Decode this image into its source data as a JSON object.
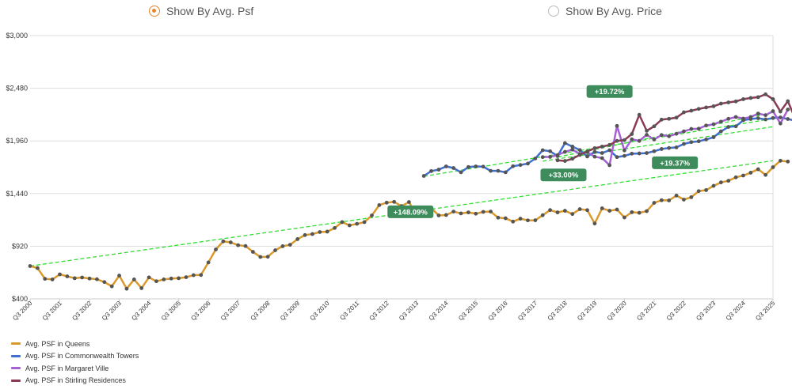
{
  "toggle": {
    "option1": {
      "label": "Show By Avg. Psf",
      "selected": true
    },
    "option2": {
      "label": "Show By Avg. Price",
      "selected": false
    },
    "accent": "#e5862b"
  },
  "chart_data": {
    "type": "line",
    "title": "",
    "xlabel": "",
    "ylabel": "",
    "y_ticks": [
      "$400",
      "$920",
      "$1,440",
      "$1,960",
      "$2,480",
      "$3,000"
    ],
    "ylim": [
      400,
      3000
    ],
    "x_ticks": [
      "Q3 2000",
      "Q3 2001",
      "Q3 2002",
      "Q3 2003",
      "Q3 2004",
      "Q3 2005",
      "Q3 2006",
      "Q3 2007",
      "Q3 2008",
      "Q3 2009",
      "Q3 2010",
      "Q3 2011",
      "Q3 2012",
      "Q3 2013",
      "Q3 2014",
      "Q3 2015",
      "Q3 2016",
      "Q3 2017",
      "Q3 2018",
      "Q3 2019",
      "Q3 2020",
      "Q3 2021",
      "Q3 2022",
      "Q3 2023",
      "Q3 2024",
      "Q3 2025"
    ],
    "xlim": [
      2000.5,
      2025.5
    ],
    "grid": true,
    "legend_position": "bottom-left",
    "series": [
      {
        "name": "Avg. PSF in Queens",
        "color": "#d99a2b",
        "x_start": 2000.5,
        "values": [
          724,
          704,
          598,
          592,
          642,
          622,
          604,
          611,
          601,
          594,
          566,
          524,
          630,
          500,
          592,
          506,
          612,
          574,
          592,
          601,
          604,
          614,
          634,
          636,
          760,
          888,
          968,
          958,
          930,
          922,
          864,
          814,
          816,
          880,
          920,
          934,
          990,
          1030,
          1040,
          1060,
          1064,
          1100,
          1158,
          1126,
          1141,
          1158,
          1224,
          1326,
          1350,
          1358,
          1316,
          1356,
          1230,
          1284,
          1298,
          1224,
          1228,
          1262,
          1244,
          1254,
          1241,
          1259,
          1262,
          1202,
          1196,
          1163,
          1192,
          1175,
          1176,
          1226,
          1277,
          1254,
          1270,
          1238,
          1286,
          1276,
          1144,
          1294,
          1270,
          1282,
          1204,
          1256,
          1250,
          1266,
          1348,
          1374,
          1372,
          1420,
          1380,
          1404,
          1464,
          1474,
          1516,
          1550,
          1566,
          1600,
          1618,
          1646,
          1680,
          1624,
          1700,
          1764,
          1756
        ]
      },
      {
        "name": "Avg. PSF in Commonwealth Towers",
        "color": "#3f6fd1",
        "x_start": 2013.75,
        "values": [
          1614,
          1662,
          1676,
          1708,
          1692,
          1650,
          1702,
          1708,
          1706,
          1664,
          1664,
          1650,
          1710,
          1722,
          1736,
          1786,
          1868,
          1858,
          1810,
          1938,
          1904,
          1870,
          1806,
          1852,
          1840,
          1868,
          1800,
          1812,
          1834,
          1836,
          1840,
          1858,
          1880,
          1890,
          1896,
          1930,
          1948,
          1956,
          1974,
          1996,
          2054,
          2098,
          2104,
          2164,
          2176,
          2184,
          2172,
          2186,
          2192,
          2176,
          2160
        ]
      },
      {
        "name": "Avg. PSF in Margaret Ville",
        "color": "#a860d6",
        "x_start": 2017.75,
        "values": [
          1800,
          1802,
          1820,
          1852,
          1874,
          1830,
          1850,
          1804,
          1790,
          1720,
          2108,
          1866,
          1976,
          1960,
          2020,
          1974,
          2018,
          2006,
          2030,
          2054,
          2078,
          2080,
          2112,
          2124,
          2150,
          2178,
          2196,
          2180,
          2196,
          2230,
          2214,
          2254,
          2132,
          2270
        ]
      },
      {
        "name": "Avg. PSF in Stirling Residences",
        "color": "#8a3a52",
        "x_start": 2018.25,
        "values": [
          1768,
          1762,
          1784,
          1822,
          1856,
          1888,
          1904,
          1920,
          1960,
          1968,
          2028,
          2218,
          2060,
          2104,
          2170,
          2178,
          2190,
          2242,
          2258,
          2276,
          2290,
          2302,
          2328,
          2340,
          2350,
          2372,
          2384,
          2392,
          2420,
          2372,
          2250,
          2352,
          2180
        ]
      }
    ],
    "trendlines": [
      {
        "from": [
          2000.5,
          724
        ],
        "to": [
          2025.5,
          1764
        ],
        "color": "#33dd33"
      },
      {
        "from": [
          2013.75,
          1610
        ],
        "to": [
          2025.5,
          2180
        ],
        "color": "#33dd33"
      },
      {
        "from": [
          2017.75,
          1760
        ],
        "to": [
          2025.5,
          2100
        ],
        "color": "#33dd33"
      },
      {
        "from": [
          2018.25,
          1800
        ],
        "to": [
          2025.5,
          2240
        ],
        "color": "#33dd33"
      }
    ],
    "annotations": [
      {
        "text": "+148.09%",
        "x": 2013.3,
        "y": 1260
      },
      {
        "text": "+33.00%",
        "x": 2018.45,
        "y": 1624
      },
      {
        "text": "+19.72%",
        "x": 2020.0,
        "y": 2448
      },
      {
        "text": "+19.37%",
        "x": 2022.2,
        "y": 1744
      }
    ],
    "marker_color": "#555555"
  }
}
